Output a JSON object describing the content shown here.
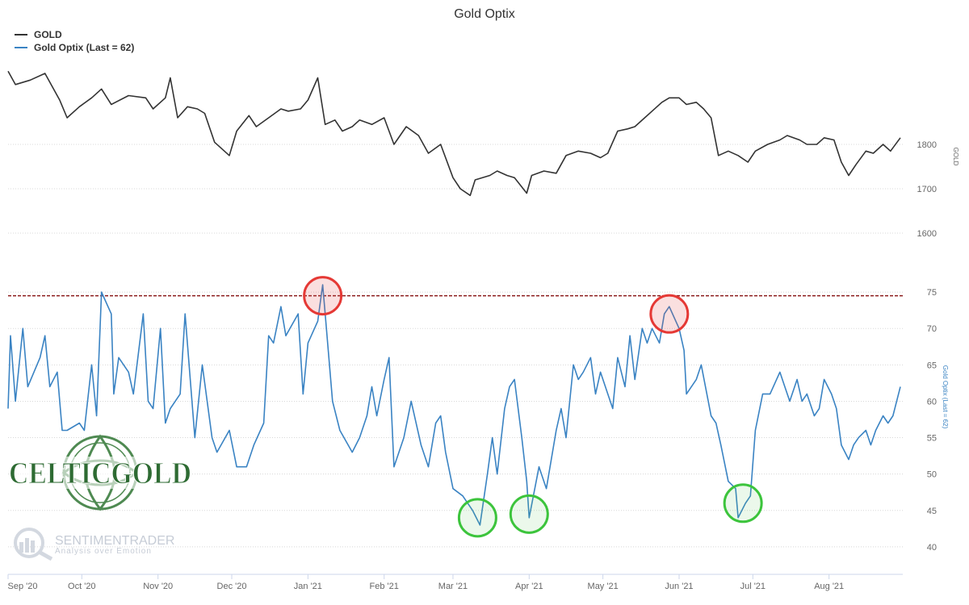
{
  "chart_data": {
    "type": "line",
    "title": "Gold Optix",
    "x_labels": [
      "Sep '20",
      "Oct '20",
      "Nov '20",
      "Dec '20",
      "Jan '21",
      "Feb '21",
      "Mar '21",
      "Apr '21",
      "May '21",
      "Jun '21",
      "Jul '21",
      "Aug '21"
    ],
    "legend": {
      "position": "top-left"
    },
    "top_panel": {
      "axis_title": "GOLD",
      "yticks": [
        1600,
        1700,
        1800
      ],
      "ylim": [
        1580,
        1980
      ],
      "grid": true
    },
    "bottom_panel": {
      "axis_title": "Gold Optix (Last = 62)",
      "yticks": [
        40,
        45,
        50,
        55,
        60,
        65,
        70,
        75
      ],
      "ylim": [
        37,
        78
      ],
      "grid": true,
      "reference_line": 74.5
    },
    "series": [
      {
        "name": "GOLD",
        "color": "#333333",
        "points": [
          [
            "2020-09-01",
            1965
          ],
          [
            "2020-09-04",
            1935
          ],
          [
            "2020-09-10",
            1945
          ],
          [
            "2020-09-16",
            1960
          ],
          [
            "2020-09-22",
            1900
          ],
          [
            "2020-09-25",
            1860
          ],
          [
            "2020-09-30",
            1885
          ],
          [
            "2020-10-05",
            1905
          ],
          [
            "2020-10-09",
            1925
          ],
          [
            "2020-10-13",
            1890
          ],
          [
            "2020-10-20",
            1910
          ],
          [
            "2020-10-27",
            1905
          ],
          [
            "2020-10-30",
            1880
          ],
          [
            "2020-11-04",
            1905
          ],
          [
            "2020-11-06",
            1950
          ],
          [
            "2020-11-09",
            1860
          ],
          [
            "2020-11-13",
            1885
          ],
          [
            "2020-11-17",
            1880
          ],
          [
            "2020-11-20",
            1870
          ],
          [
            "2020-11-24",
            1805
          ],
          [
            "2020-11-30",
            1775
          ],
          [
            "2020-12-03",
            1830
          ],
          [
            "2020-12-08",
            1865
          ],
          [
            "2020-12-11",
            1840
          ],
          [
            "2020-12-16",
            1860
          ],
          [
            "2020-12-21",
            1880
          ],
          [
            "2020-12-24",
            1875
          ],
          [
            "2020-12-29",
            1880
          ],
          [
            "2021-01-01",
            1900
          ],
          [
            "2021-01-05",
            1950
          ],
          [
            "2021-01-08",
            1845
          ],
          [
            "2021-01-12",
            1855
          ],
          [
            "2021-01-15",
            1830
          ],
          [
            "2021-01-19",
            1840
          ],
          [
            "2021-01-22",
            1855
          ],
          [
            "2021-01-27",
            1845
          ],
          [
            "2021-02-01",
            1860
          ],
          [
            "2021-02-03",
            1830
          ],
          [
            "2021-02-05",
            1800
          ],
          [
            "2021-02-10",
            1840
          ],
          [
            "2021-02-15",
            1820
          ],
          [
            "2021-02-19",
            1780
          ],
          [
            "2021-02-24",
            1800
          ],
          [
            "2021-03-01",
            1725
          ],
          [
            "2021-03-04",
            1700
          ],
          [
            "2021-03-08",
            1685
          ],
          [
            "2021-03-10",
            1720
          ],
          [
            "2021-03-16",
            1730
          ],
          [
            "2021-03-19",
            1740
          ],
          [
            "2021-03-23",
            1730
          ],
          [
            "2021-03-26",
            1725
          ],
          [
            "2021-03-31",
            1690
          ],
          [
            "2021-04-02",
            1730
          ],
          [
            "2021-04-07",
            1740
          ],
          [
            "2021-04-12",
            1735
          ],
          [
            "2021-04-16",
            1775
          ],
          [
            "2021-04-21",
            1785
          ],
          [
            "2021-04-26",
            1780
          ],
          [
            "2021-04-30",
            1770
          ],
          [
            "2021-05-03",
            1780
          ],
          [
            "2021-05-07",
            1830
          ],
          [
            "2021-05-11",
            1835
          ],
          [
            "2021-05-14",
            1840
          ],
          [
            "2021-05-18",
            1860
          ],
          [
            "2021-05-21",
            1875
          ],
          [
            "2021-05-25",
            1895
          ],
          [
            "2021-05-28",
            1905
          ],
          [
            "2021-06-01",
            1905
          ],
          [
            "2021-06-04",
            1890
          ],
          [
            "2021-06-08",
            1895
          ],
          [
            "2021-06-11",
            1880
          ],
          [
            "2021-06-14",
            1860
          ],
          [
            "2021-06-17",
            1775
          ],
          [
            "2021-06-21",
            1785
          ],
          [
            "2021-06-25",
            1775
          ],
          [
            "2021-06-29",
            1760
          ],
          [
            "2021-07-02",
            1785
          ],
          [
            "2021-07-07",
            1800
          ],
          [
            "2021-07-12",
            1810
          ],
          [
            "2021-07-15",
            1820
          ],
          [
            "2021-07-20",
            1810
          ],
          [
            "2021-07-23",
            1800
          ],
          [
            "2021-07-27",
            1800
          ],
          [
            "2021-07-30",
            1815
          ],
          [
            "2021-08-03",
            1810
          ],
          [
            "2021-08-06",
            1760
          ],
          [
            "2021-08-09",
            1730
          ],
          [
            "2021-08-12",
            1755
          ],
          [
            "2021-08-16",
            1785
          ],
          [
            "2021-08-19",
            1780
          ],
          [
            "2021-08-23",
            1800
          ],
          [
            "2021-08-26",
            1785
          ],
          [
            "2021-08-30",
            1815
          ]
        ]
      },
      {
        "name": "Gold Optix (Last = 62)",
        "color": "#3a83c3",
        "points": [
          [
            "2020-09-01",
            59
          ],
          [
            "2020-09-02",
            69
          ],
          [
            "2020-09-04",
            60
          ],
          [
            "2020-09-07",
            70
          ],
          [
            "2020-09-09",
            62
          ],
          [
            "2020-09-14",
            66
          ],
          [
            "2020-09-16",
            69
          ],
          [
            "2020-09-18",
            62
          ],
          [
            "2020-09-21",
            64
          ],
          [
            "2020-09-23",
            56
          ],
          [
            "2020-09-25",
            56
          ],
          [
            "2020-09-30",
            57
          ],
          [
            "2020-10-02",
            56
          ],
          [
            "2020-10-05",
            65
          ],
          [
            "2020-10-07",
            58
          ],
          [
            "2020-10-09",
            75
          ],
          [
            "2020-10-13",
            72
          ],
          [
            "2020-10-14",
            61
          ],
          [
            "2020-10-16",
            66
          ],
          [
            "2020-10-20",
            64
          ],
          [
            "2020-10-22",
            61
          ],
          [
            "2020-10-26",
            72
          ],
          [
            "2020-10-28",
            60
          ],
          [
            "2020-10-30",
            59
          ],
          [
            "2020-11-02",
            70
          ],
          [
            "2020-11-04",
            57
          ],
          [
            "2020-11-06",
            59
          ],
          [
            "2020-11-10",
            61
          ],
          [
            "2020-11-12",
            72
          ],
          [
            "2020-11-16",
            55
          ],
          [
            "2020-11-19",
            65
          ],
          [
            "2020-11-23",
            55
          ],
          [
            "2020-11-25",
            53
          ],
          [
            "2020-11-30",
            56
          ],
          [
            "2020-12-03",
            51
          ],
          [
            "2020-12-07",
            51
          ],
          [
            "2020-12-10",
            54
          ],
          [
            "2020-12-14",
            57
          ],
          [
            "2020-12-16",
            69
          ],
          [
            "2020-12-18",
            68
          ],
          [
            "2020-12-21",
            73
          ],
          [
            "2020-12-23",
            69
          ],
          [
            "2020-12-28",
            72
          ],
          [
            "2020-12-30",
            61
          ],
          [
            "2021-01-01",
            68
          ],
          [
            "2021-01-05",
            71
          ],
          [
            "2021-01-07",
            76
          ],
          [
            "2021-01-08",
            72
          ],
          [
            "2021-01-11",
            60
          ],
          [
            "2021-01-14",
            56
          ],
          [
            "2021-01-19",
            53
          ],
          [
            "2021-01-22",
            55
          ],
          [
            "2021-01-25",
            58
          ],
          [
            "2021-01-27",
            62
          ],
          [
            "2021-01-29",
            58
          ],
          [
            "2021-02-01",
            63
          ],
          [
            "2021-02-03",
            66
          ],
          [
            "2021-02-05",
            51
          ],
          [
            "2021-02-09",
            55
          ],
          [
            "2021-02-12",
            60
          ],
          [
            "2021-02-16",
            54
          ],
          [
            "2021-02-19",
            51
          ],
          [
            "2021-02-22",
            57
          ],
          [
            "2021-02-24",
            58
          ],
          [
            "2021-02-26",
            53
          ],
          [
            "2021-03-01",
            48
          ],
          [
            "2021-03-05",
            47
          ],
          [
            "2021-03-09",
            45
          ],
          [
            "2021-03-12",
            43
          ],
          [
            "2021-03-15",
            50
          ],
          [
            "2021-03-17",
            55
          ],
          [
            "2021-03-19",
            50
          ],
          [
            "2021-03-22",
            59
          ],
          [
            "2021-03-24",
            62
          ],
          [
            "2021-03-26",
            63
          ],
          [
            "2021-03-29",
            55
          ],
          [
            "2021-03-31",
            49
          ],
          [
            "2021-04-01",
            44
          ],
          [
            "2021-04-05",
            51
          ],
          [
            "2021-04-08",
            48
          ],
          [
            "2021-04-12",
            56
          ],
          [
            "2021-04-14",
            59
          ],
          [
            "2021-04-16",
            55
          ],
          [
            "2021-04-19",
            65
          ],
          [
            "2021-04-21",
            63
          ],
          [
            "2021-04-23",
            64
          ],
          [
            "2021-04-26",
            66
          ],
          [
            "2021-04-28",
            61
          ],
          [
            "2021-04-30",
            64
          ],
          [
            "2021-05-03",
            61
          ],
          [
            "2021-05-05",
            59
          ],
          [
            "2021-05-07",
            66
          ],
          [
            "2021-05-10",
            62
          ],
          [
            "2021-05-12",
            69
          ],
          [
            "2021-05-14",
            63
          ],
          [
            "2021-05-17",
            70
          ],
          [
            "2021-05-19",
            68
          ],
          [
            "2021-05-21",
            70
          ],
          [
            "2021-05-24",
            68
          ],
          [
            "2021-05-26",
            72
          ],
          [
            "2021-05-28",
            73
          ],
          [
            "2021-06-01",
            70
          ],
          [
            "2021-06-03",
            67
          ],
          [
            "2021-06-04",
            61
          ],
          [
            "2021-06-08",
            63
          ],
          [
            "2021-06-10",
            65
          ],
          [
            "2021-06-14",
            58
          ],
          [
            "2021-06-16",
            57
          ],
          [
            "2021-06-18",
            54
          ],
          [
            "2021-06-21",
            49
          ],
          [
            "2021-06-24",
            48
          ],
          [
            "2021-06-25",
            44
          ],
          [
            "2021-06-28",
            46
          ],
          [
            "2021-06-30",
            47
          ],
          [
            "2021-07-02",
            56
          ],
          [
            "2021-07-05",
            61
          ],
          [
            "2021-07-08",
            61
          ],
          [
            "2021-07-12",
            64
          ],
          [
            "2021-07-14",
            62
          ],
          [
            "2021-07-16",
            60
          ],
          [
            "2021-07-19",
            63
          ],
          [
            "2021-07-21",
            60
          ],
          [
            "2021-07-23",
            61
          ],
          [
            "2021-07-26",
            58
          ],
          [
            "2021-07-28",
            59
          ],
          [
            "2021-07-30",
            63
          ],
          [
            "2021-08-02",
            61
          ],
          [
            "2021-08-04",
            59
          ],
          [
            "2021-08-06",
            54
          ],
          [
            "2021-08-09",
            52
          ],
          [
            "2021-08-11",
            54
          ],
          [
            "2021-08-13",
            55
          ],
          [
            "2021-08-16",
            56
          ],
          [
            "2021-08-18",
            54
          ],
          [
            "2021-08-20",
            56
          ],
          [
            "2021-08-23",
            58
          ],
          [
            "2021-08-25",
            57
          ],
          [
            "2021-08-27",
            58
          ],
          [
            "2021-08-30",
            62
          ]
        ]
      }
    ],
    "annotations": [
      {
        "type": "circle",
        "color": "red",
        "date": "2021-01-07",
        "value": 74.5
      },
      {
        "type": "circle",
        "color": "red",
        "date": "2021-05-28",
        "value": 72
      },
      {
        "type": "circle",
        "color": "green",
        "date": "2021-03-11",
        "value": 44
      },
      {
        "type": "circle",
        "color": "green",
        "date": "2021-04-01",
        "value": 44.5
      },
      {
        "type": "circle",
        "color": "green",
        "date": "2021-06-27",
        "value": 46
      }
    ]
  },
  "logos": {
    "celticgold": "CELTICGOLD",
    "sentimentrader": "SENTIMENTRADER",
    "sentimentrader_tagline": "Analysis over Emotion"
  }
}
